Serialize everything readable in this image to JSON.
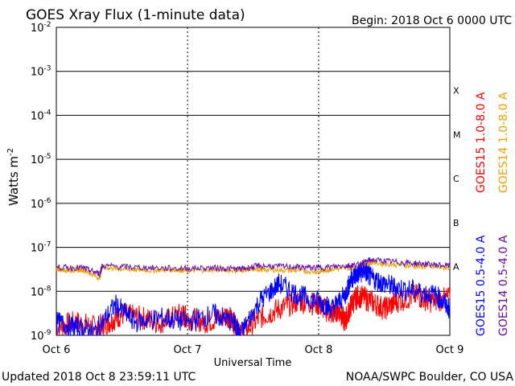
{
  "chart_data": {
    "type": "line",
    "title": "GOES Xray Flux (1-minute data)",
    "begin": "Begin:  2018 Oct 6 0000 UTC",
    "ylabel": "Watts m",
    "ylabel_sup": "-2",
    "xlabel": "Universal Time",
    "y_scale": "log",
    "ylim": [
      1e-09,
      0.01
    ],
    "y_ticks": [
      {
        "base": "10",
        "exp": "-2"
      },
      {
        "base": "10",
        "exp": "-3"
      },
      {
        "base": "10",
        "exp": "-4"
      },
      {
        "base": "10",
        "exp": "-5"
      },
      {
        "base": "10",
        "exp": "-6"
      },
      {
        "base": "10",
        "exp": "-7"
      },
      {
        "base": "10",
        "exp": "-8"
      },
      {
        "base": "10",
        "exp": "-9"
      }
    ],
    "x_ticks": [
      "Oct 6",
      "Oct 7",
      "Oct 8",
      "Oct 9"
    ],
    "flare_classes": [
      "X",
      "M",
      "C",
      "B",
      "A"
    ],
    "grid": true,
    "series": [
      {
        "name": "GOES15 1.0-8.0 A",
        "color": "#ff0000",
        "x": [
          0.0,
          0.15,
          0.3,
          0.4,
          0.5,
          0.65,
          0.8,
          0.95,
          1.0,
          1.15,
          1.3,
          1.35,
          1.4,
          1.55,
          1.7,
          1.85,
          2.0,
          2.1,
          2.15,
          2.2,
          2.25,
          2.3,
          2.4,
          2.5,
          2.6,
          2.75,
          2.85,
          3.0
        ],
        "y": [
          1.5e-09,
          2e-09,
          1.5e-09,
          2e-09,
          3e-09,
          2.5e-09,
          2e-09,
          3e-09,
          2.5e-09,
          2e-09,
          3e-09,
          2e-09,
          1e-09,
          2.5e-09,
          4e-09,
          6e-09,
          5e-09,
          3e-09,
          4e-09,
          2e-09,
          5e-09,
          8e-09,
          6e-09,
          4e-09,
          6e-09,
          8e-09,
          6e-09,
          7e-09
        ]
      },
      {
        "name": "GOES14 1.0-8.0 A",
        "color": "#f0a000",
        "x": [
          0.0,
          0.1,
          0.2,
          0.33,
          0.35,
          0.5,
          0.7,
          0.9,
          1.0,
          1.2,
          1.4,
          1.5,
          1.6,
          1.8,
          2.0,
          2.1,
          2.3,
          2.4,
          2.6,
          2.8,
          3.0
        ],
        "y": [
          3.2e-08,
          3e-08,
          3.1e-08,
          2e-08,
          3.5e-08,
          3.2e-08,
          3e-08,
          3.1e-08,
          3e-08,
          3.1e-08,
          3e-08,
          3.2e-08,
          3.1e-08,
          3e-08,
          2.8e-08,
          3.2e-08,
          3.4e-08,
          4.5e-08,
          4e-08,
          3.6e-08,
          3.4e-08
        ]
      },
      {
        "name": "GOES15 0.5-4.0 A",
        "color": "#0000ff",
        "x": [
          0.0,
          0.15,
          0.3,
          0.45,
          0.6,
          0.8,
          1.0,
          1.2,
          1.35,
          1.4,
          1.55,
          1.7,
          1.85,
          2.0,
          2.1,
          2.2,
          2.25,
          2.3,
          2.35,
          2.4,
          2.5,
          2.6,
          2.75,
          2.9,
          3.0
        ],
        "y": [
          2e-09,
          1.5e-09,
          1.2e-09,
          5e-09,
          2e-09,
          2.5e-09,
          2e-09,
          3e-09,
          2e-09,
          1e-09,
          6e-09,
          1.5e-08,
          8e-09,
          6e-09,
          4e-09,
          8e-09,
          2e-08,
          2.5e-08,
          3e-08,
          2e-08,
          1.5e-08,
          1.2e-08,
          1e-08,
          8e-09,
          4e-09
        ]
      },
      {
        "name": "GOES14 0.5-4.0 A",
        "color": "#6a0dad",
        "x": [
          0.0,
          0.2,
          0.33,
          0.35,
          0.6,
          0.9,
          1.2,
          1.4,
          1.55,
          1.8,
          2.0,
          2.2,
          2.3,
          2.4,
          2.6,
          2.8,
          3.0
        ],
        "y": [
          3.5e-08,
          3.4e-08,
          2.5e-08,
          3.8e-08,
          3.5e-08,
          3.3e-08,
          3.4e-08,
          3.2e-08,
          3.8e-08,
          3.6e-08,
          3.4e-08,
          3.8e-08,
          4e-08,
          5.2e-08,
          4.6e-08,
          4.2e-08,
          3.8e-08
        ]
      }
    ]
  },
  "footer": {
    "updated": "Updated 2018 Oct  8 23:59:11 UTC",
    "credit": "NOAA/SWPC Boulder, CO USA"
  }
}
